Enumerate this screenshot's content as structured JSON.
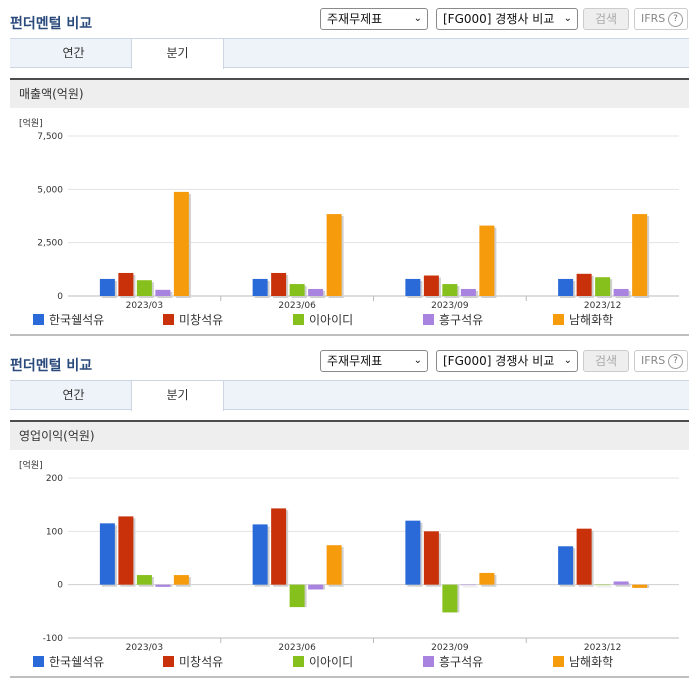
{
  "panels": [
    {
      "title": "펀더멘털 비교",
      "select1": "주재무제표",
      "select2": "[FG000] 경쟁사 비교",
      "search_label": "검색",
      "ifrs_label": "IFRS",
      "tabs": [
        "연간",
        "분기"
      ],
      "active_tab": 1,
      "metric_label": "매출액(억원)"
    },
    {
      "title": "펀더멘털 비교",
      "select1": "주재무제표",
      "select2": "[FG000] 경쟁사 비교",
      "search_label": "검색",
      "ifrs_label": "IFRS",
      "tabs": [
        "연간",
        "분기"
      ],
      "active_tab": 1,
      "metric_label": "영업이익(억원)"
    }
  ],
  "colors": {
    "series": [
      "#2a6ad8",
      "#c8310a",
      "#86c01c",
      "#a983e0",
      "#f69b0c"
    ],
    "title": "#2b4a7c"
  },
  "chart_data": [
    {
      "type": "bar",
      "unit_label": "[억원]",
      "categories": [
        "2023/03",
        "2023/06",
        "2023/09",
        "2023/12"
      ],
      "series": [
        {
          "name": "한국쉘석유",
          "values": [
            800,
            800,
            800,
            800
          ]
        },
        {
          "name": "미창석유",
          "values": [
            1080,
            1080,
            960,
            1040
          ]
        },
        {
          "name": "이아이디",
          "values": [
            740,
            560,
            560,
            880
          ]
        },
        {
          "name": "흥구석유",
          "values": [
            290,
            330,
            330,
            330
          ]
        },
        {
          "name": "남해화학",
          "values": [
            4880,
            3840,
            3300,
            3840
          ]
        }
      ],
      "yticks": [
        0,
        2500,
        5000,
        7500
      ],
      "ytick_labels": [
        "0",
        "2,500",
        "5,000",
        "7,500"
      ],
      "ylim": [
        0,
        7500
      ],
      "grid": true,
      "legend": "bottom"
    },
    {
      "type": "bar",
      "unit_label": "[억원]",
      "categories": [
        "2023/03",
        "2023/06",
        "2023/09",
        "2023/12"
      ],
      "series": [
        {
          "name": "한국쉘석유",
          "values": [
            115,
            113,
            120,
            72
          ]
        },
        {
          "name": "미창석유",
          "values": [
            128,
            143,
            100,
            105
          ]
        },
        {
          "name": "이아이디",
          "values": [
            18,
            -42,
            -52,
            0
          ]
        },
        {
          "name": "흥구석유",
          "values": [
            -4,
            -9,
            0,
            6
          ]
        },
        {
          "name": "남해화학",
          "values": [
            18,
            74,
            22,
            -6
          ]
        }
      ],
      "yticks": [
        -100,
        0,
        100,
        200
      ],
      "ytick_labels": [
        "-100",
        "0",
        "100",
        "200"
      ],
      "ylim": [
        -100,
        200
      ],
      "grid": true,
      "legend": "bottom"
    }
  ]
}
